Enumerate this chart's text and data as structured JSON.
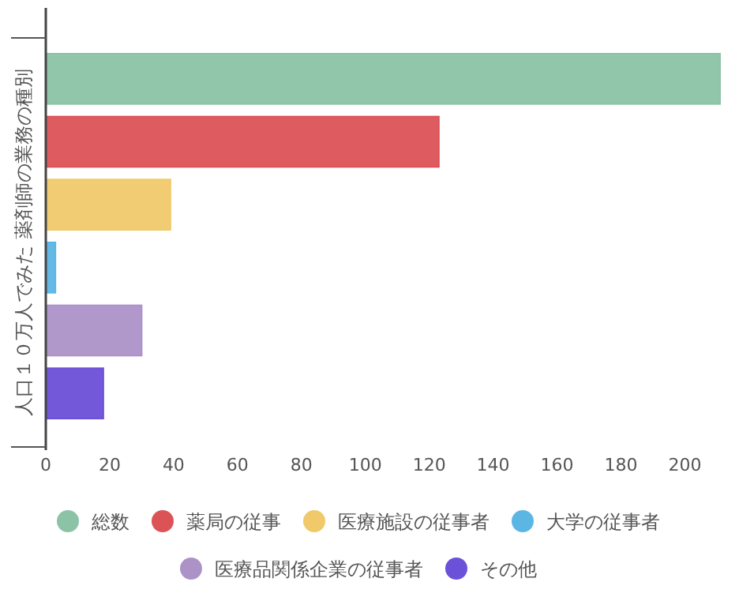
{
  "chart_data": {
    "type": "bar",
    "orientation": "horizontal",
    "ylabel": "人口１０万人でみた 薬剤師の業務の種別",
    "categories": [
      null
    ],
    "series": [
      {
        "name": "総数",
        "color": "#8cc3a6",
        "values": [
          211
        ]
      },
      {
        "name": "薬局の従事",
        "color": "#dc5356",
        "values": [
          123
        ]
      },
      {
        "name": "医療施設の従事者",
        "color": "#f0c96a",
        "values": [
          39
        ]
      },
      {
        "name": "大学の従事者",
        "color": "#5cb6e4",
        "values": [
          3
        ]
      },
      {
        "name": "医療品関係企業の従事者",
        "color": "#ad92c8",
        "values": [
          30
        ]
      },
      {
        "name": "その他",
        "color": "#6b50d8",
        "values": [
          18
        ]
      }
    ],
    "xlim": [
      0,
      212
    ],
    "xticks": [
      0,
      20,
      40,
      60,
      80,
      100,
      120,
      140,
      160,
      180,
      200
    ],
    "legend": "bottom",
    "grid": false
  }
}
